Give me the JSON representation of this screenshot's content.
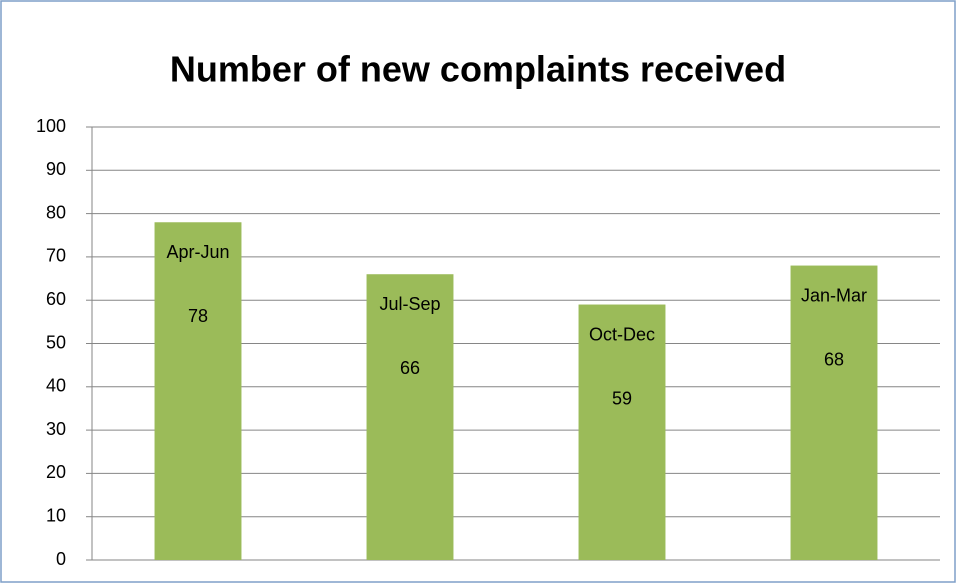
{
  "chart_data": {
    "type": "bar",
    "title": "Number of new complaints received",
    "categories": [
      "Apr-Jun",
      "Jul-Sep",
      "Oct-Dec",
      "Jan-Mar"
    ],
    "values": [
      78,
      66,
      59,
      68
    ],
    "color": "#9bbb59",
    "ylim": [
      0,
      100
    ],
    "yticks": [
      0,
      10,
      20,
      30,
      40,
      50,
      60,
      70,
      80,
      90,
      100
    ],
    "grid": true
  }
}
